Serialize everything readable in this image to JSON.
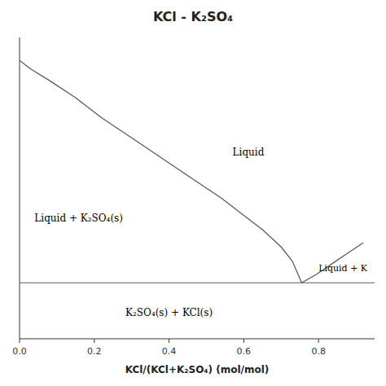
{
  "chart_data": {
    "type": "line",
    "title": "KCl - K₂SO₄",
    "x_label": "KCl/(KCl+K₂SO₄) (mol/mol)",
    "series": [
      {
        "color": "#5a5a5a",
        "x": [
          0.0,
          0.03,
          0.08,
          0.15,
          0.22,
          0.3,
          0.38,
          0.46,
          0.54,
          0.6,
          0.65,
          0.7,
          0.73,
          0.755
        ],
        "values": [
          0.97,
          0.94,
          0.9,
          0.84,
          0.77,
          0.7,
          0.63,
          0.56,
          0.49,
          0.43,
          0.38,
          0.32,
          0.27,
          0.195
        ]
      },
      {
        "color": "#5a5a5a",
        "x": [
          0.755,
          0.795,
          0.84,
          0.88,
          0.92
        ],
        "values": [
          0.195,
          0.225,
          0.265,
          0.3,
          0.335
        ]
      }
    ],
    "hlines": [
      {
        "y": 0.195,
        "color": "#5a5a5a"
      }
    ],
    "annotations": [
      {
        "text": "Liquid",
        "x": 0.57,
        "y": 0.65
      },
      {
        "text": "Liquid + K₂SO₄(s)",
        "x": 0.04,
        "y": 0.42
      },
      {
        "text": "K₂SO₄(s) + KCl(s)",
        "x": 0.4,
        "y": 0.09
      },
      {
        "text": "Liquid + K",
        "x": 0.8,
        "y": 0.245
      }
    ],
    "xlim": [
      0.0,
      0.95
    ],
    "ylim": [
      0.0,
      1.05
    ],
    "xticks": [
      {
        "value": 0,
        "label": "0.0"
      },
      0.2,
      0.4,
      0.6,
      0.8
    ],
    "yticks": [],
    "tick_labels": "x",
    "grid": false
  }
}
